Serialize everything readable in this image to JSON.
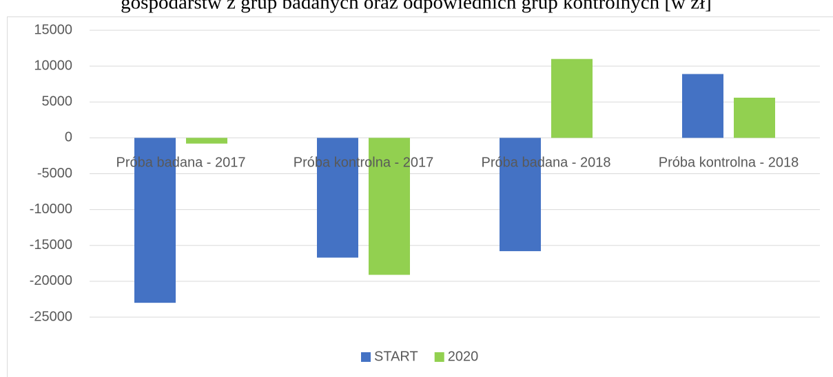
{
  "chart_data": {
    "type": "bar",
    "title": "gospodarstw z grup badanych oraz odpowiednich grup kontrolnych [w zł]",
    "categories": [
      "Próba badana - 2017",
      "Próba kontrolna - 2017",
      "Próba badana - 2018",
      "Próba kontrolna - 2018"
    ],
    "series": [
      {
        "name": "START",
        "color": "#4472c4",
        "values": [
          -23000,
          -16700,
          -15800,
          8900
        ]
      },
      {
        "name": "2020",
        "color": "#92d050",
        "values": [
          -800,
          -19100,
          11000,
          5600
        ]
      }
    ],
    "ylim": [
      -25000,
      15000
    ],
    "yticks": [
      -25000,
      -20000,
      -15000,
      -10000,
      -5000,
      0,
      5000,
      10000,
      15000
    ],
    "grid": true,
    "legend": "bottom"
  }
}
